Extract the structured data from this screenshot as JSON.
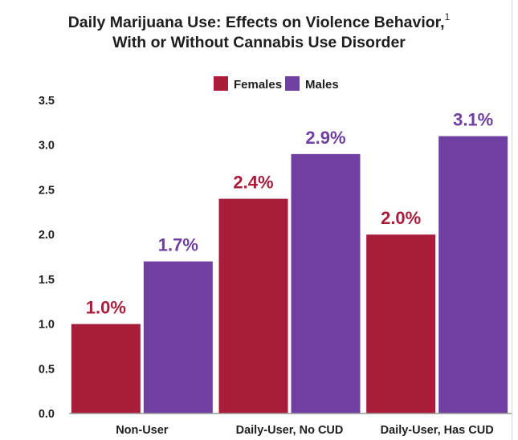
{
  "chart_data": {
    "type": "bar",
    "title_line1": "Daily Marijuana Use: Effects on Violence Behavior,",
    "title_sup": "1",
    "title_line2": "With or Without Cannabis Use Disorder",
    "xlabel": "",
    "ylabel": "",
    "ylim": [
      0,
      3.5
    ],
    "yticks": [
      "0.0",
      "0.5",
      "1.0",
      "1.5",
      "2.0",
      "2.5",
      "3.0",
      "3.5"
    ],
    "grid": false,
    "legend_position": "top-center",
    "categories": [
      "Non-User",
      "Daily-User, No CUD",
      "Daily-User, Has CUD"
    ],
    "series": [
      {
        "name": "Females",
        "color": "#a91c3a",
        "values": [
          1.0,
          2.4,
          2.0
        ],
        "labels": [
          "1.0%",
          "2.4%",
          "2.0%"
        ]
      },
      {
        "name": "Males",
        "color": "#6f3fa1",
        "values": [
          1.7,
          2.9,
          3.1
        ],
        "labels": [
          "1.7%",
          "2.9%",
          "3.1%"
        ]
      }
    ]
  }
}
